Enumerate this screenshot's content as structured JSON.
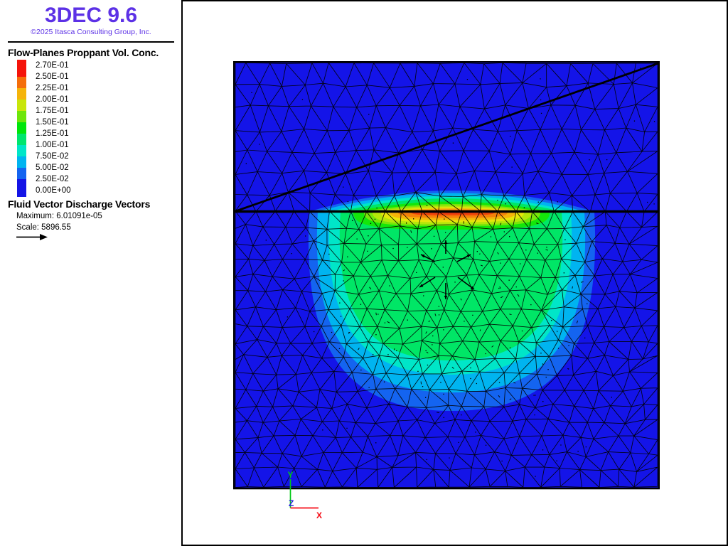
{
  "app": {
    "title": "3DEC 9.6",
    "copyright": "©2025 Itasca Consulting Group, Inc.",
    "brand_color": "#5c31e6"
  },
  "legend": {
    "title": "Flow-Planes Proppant Vol. Conc.",
    "labels": [
      "2.70E-01",
      "2.50E-01",
      "2.25E-01",
      "2.00E-01",
      "1.75E-01",
      "1.50E-01",
      "1.25E-01",
      "1.00E-01",
      "7.50E-02",
      "5.00E-02",
      "2.50E-02",
      "0.00E+00"
    ],
    "swatch_colors": [
      "#f5140a",
      "#f56e0a",
      "#f5b40a",
      "#c8e60a",
      "#6ee60a",
      "#00e60a",
      "#00e66e",
      "#00e6c8",
      "#00b4f0",
      "#1464f0",
      "#1414e6"
    ]
  },
  "vectors": {
    "title": "Fluid Vector Discharge Vectors",
    "maximum": "Maximum: 6.01091e-05",
    "scale": "Scale: 5896.55"
  },
  "axes": {
    "x_label": "X",
    "y_label": "Y",
    "z_label": "Z",
    "x_color": "#f50a14",
    "y_color": "#00c814",
    "z_color": "#2823dc"
  },
  "plot": {
    "field_color": "#1414e8",
    "mesh_color": "#000000",
    "band_colors_outer_to_inner": [
      "#1464f0",
      "#00b4f0",
      "#00e6c8",
      "#00e666",
      "#14e60a",
      "#78e60a",
      "#b4e60a",
      "#e6e60a",
      "#f5b40a",
      "#f5820a",
      "#f0460a",
      "#e63214"
    ]
  },
  "chart_data": {
    "type": "heatmap",
    "title": "Flow-Planes Proppant Vol. Conc.",
    "colorbar_values": [
      0.27,
      0.25,
      0.225,
      0.2,
      0.175,
      0.15,
      0.125,
      0.1,
      0.075,
      0.05,
      0.025,
      0.0
    ],
    "colorbar_colors": [
      "#f5140a",
      "#f56e0a",
      "#f5b40a",
      "#c8e60a",
      "#6ee60a",
      "#00e60a",
      "#00e66e",
      "#00e6c8",
      "#00b4f0",
      "#1464f0",
      "#1414e6"
    ],
    "vector_maximum": 6.01091e-05,
    "vector_scale": 5896.55,
    "description": "Triangulated square domain, proppant volume concentration plume below a horizontal fracture plane with an inclined joint above; concentration peaks at 0.27 at the injection point on the fracture and decays to 0 in the far field."
  }
}
